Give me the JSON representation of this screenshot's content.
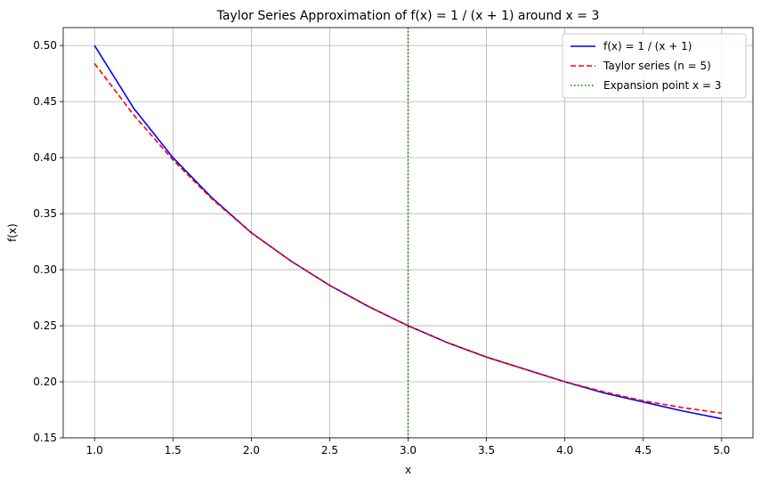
{
  "chart_data": {
    "type": "line",
    "title": "Taylor Series Approximation of f(x) = 1 / (x + 1) around x = 3",
    "xlabel": "x",
    "ylabel": "f(x)",
    "xlim": [
      0.8,
      5.2
    ],
    "ylim": [
      0.15,
      0.516
    ],
    "x_ticks": [
      "1.0",
      "1.5",
      "2.0",
      "2.5",
      "3.0",
      "3.5",
      "4.0",
      "4.5",
      "5.0"
    ],
    "y_ticks": [
      "0.15",
      "0.20",
      "0.25",
      "0.30",
      "0.35",
      "0.40",
      "0.45",
      "0.50"
    ],
    "grid": true,
    "legend_position": "top-right",
    "series": [
      {
        "name": "f(x) = 1 / (x + 1)",
        "color": "#0000ff",
        "style": "solid",
        "x": [
          1.0,
          1.25,
          1.5,
          1.75,
          2.0,
          2.25,
          2.5,
          2.75,
          3.0,
          3.25,
          3.5,
          3.75,
          4.0,
          4.25,
          4.5,
          4.75,
          5.0
        ],
        "y": [
          0.5,
          0.444,
          0.4,
          0.364,
          0.333,
          0.308,
          0.286,
          0.267,
          0.25,
          0.235,
          0.222,
          0.211,
          0.2,
          0.19,
          0.182,
          0.174,
          0.167
        ]
      },
      {
        "name": "Taylor series (n = 5)",
        "color": "#ff0000",
        "style": "dashed",
        "x": [
          1.0,
          1.25,
          1.5,
          1.75,
          2.0,
          2.25,
          2.5,
          2.75,
          3.0,
          3.25,
          3.5,
          3.75,
          4.0,
          4.25,
          4.5,
          4.75,
          5.0
        ],
        "y": [
          0.484,
          0.438,
          0.398,
          0.363,
          0.333,
          0.308,
          0.286,
          0.267,
          0.25,
          0.235,
          0.222,
          0.211,
          0.2,
          0.191,
          0.183,
          0.177,
          0.172
        ]
      }
    ],
    "vline": {
      "name": "Expansion point x = 3",
      "x": 3.0,
      "color": "#008000",
      "style": "dotted"
    }
  }
}
